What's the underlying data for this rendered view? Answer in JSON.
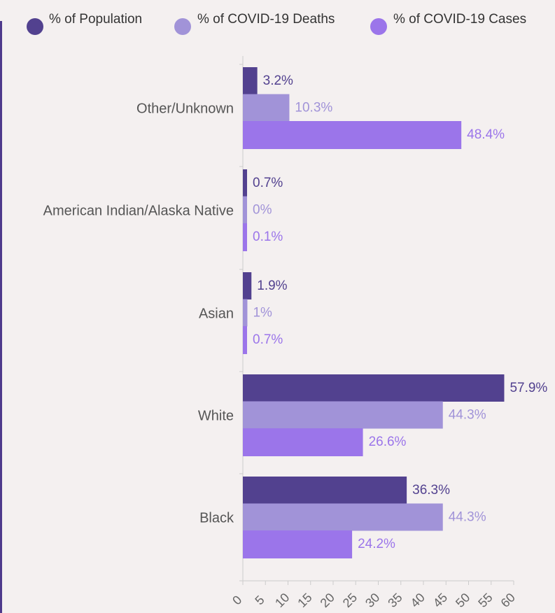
{
  "colors": {
    "population": "#52418f",
    "deaths": "#a193d8",
    "cases": "#9b75ea",
    "axis": "#cccccc",
    "category_text": "#555555",
    "tick_text": "#666666"
  },
  "chart_data": {
    "type": "bar",
    "orientation": "horizontal",
    "categories": [
      "Other/Unknown",
      "American Indian/Alaska Native",
      "Asian",
      "White",
      "Black"
    ],
    "series": [
      {
        "name": "% of Population",
        "values": [
          3.2,
          0.7,
          1.9,
          57.9,
          36.3
        ],
        "labels": [
          "3.2%",
          "0.7%",
          "1.9%",
          "57.9%",
          "36.3%"
        ]
      },
      {
        "name": "% of COVID-19 Deaths",
        "values": [
          10.3,
          0,
          1,
          44.3,
          44.3
        ],
        "labels": [
          "10.3%",
          "0%",
          "1%",
          "44.3%",
          "44.3%"
        ]
      },
      {
        "name": "% of COVID-19 Cases",
        "values": [
          48.4,
          0.1,
          0.7,
          26.6,
          24.2
        ],
        "labels": [
          "48.4%",
          "0.1%",
          "0.7%",
          "26.6%",
          "24.2%"
        ]
      }
    ],
    "x_ticks": [
      "0",
      "5",
      "10",
      "15",
      "20",
      "25",
      "30",
      "35",
      "40",
      "45",
      "50",
      "55",
      "60"
    ],
    "xlim": [
      0,
      60
    ],
    "grid": false,
    "legend_position": "top"
  }
}
